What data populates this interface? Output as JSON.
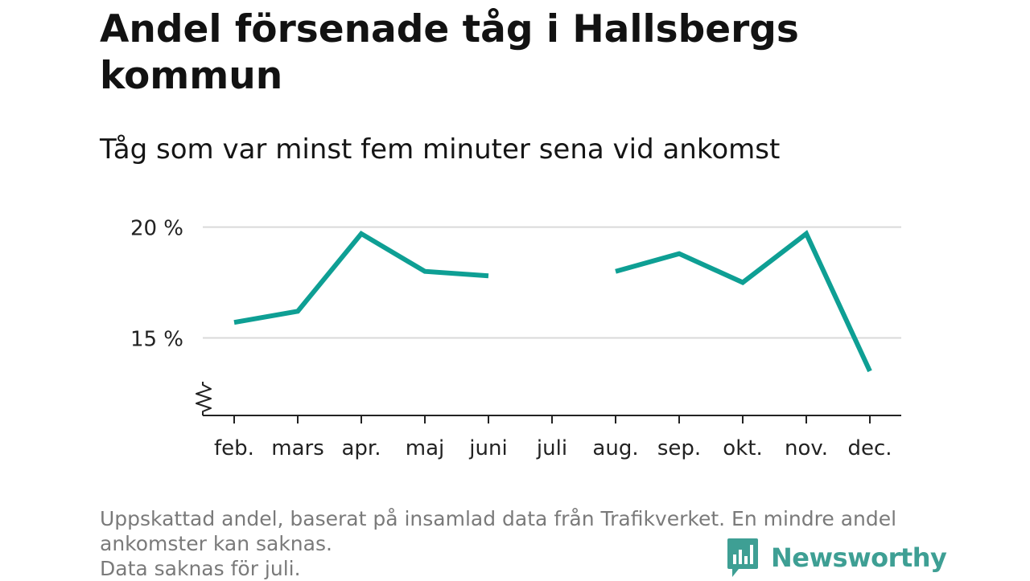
{
  "title": "Andel försenade tåg i Hallsbergs kommun",
  "subtitle": "Tåg som var minst fem minuter sena vid ankomst",
  "footnote": {
    "lines": [
      "Uppskattad andel, baserat på insamlad data från Trafikverket. En mindre andel",
      "ankomster kan saknas.",
      "Data saknas för juli."
    ]
  },
  "brand": {
    "name": "Newsworthy",
    "icon": "newsworthy-bar-chart-icon",
    "color": "#3e9f94"
  },
  "colors": {
    "line": "#0e9f94",
    "grid": "#d9d9d9",
    "axis": "#222222"
  },
  "chart_data": {
    "type": "line",
    "title": "Andel försenade tåg i Hallsbergs kommun",
    "subtitle": "Tåg som var minst fem minuter sena vid ankomst",
    "categories": [
      "feb.",
      "mars",
      "apr.",
      "maj",
      "juni",
      "juli",
      "aug.",
      "sep.",
      "okt.",
      "nov.",
      "dec."
    ],
    "series": [
      {
        "values": [
          15.7,
          16.2,
          19.7,
          18.0,
          17.8,
          null,
          18.0,
          18.8,
          17.5,
          19.7,
          13.5
        ]
      }
    ],
    "yticks": [
      {
        "value": 15,
        "label": "15 %"
      },
      {
        "value": 20,
        "label": "20 %"
      }
    ],
    "ylim": [
      11.5,
      21
    ],
    "y_axis_break": true,
    "grid": true,
    "legend": "none",
    "xlabel": "",
    "ylabel": ""
  }
}
